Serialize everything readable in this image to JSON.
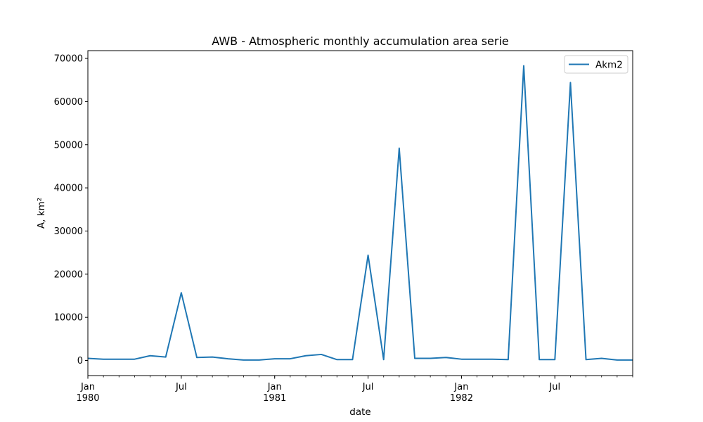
{
  "chart_data": {
    "type": "line",
    "title": "AWB - Atmospheric monthly accumulation area serie",
    "xlabel": "date",
    "ylabel": "A, km²",
    "ylim": [
      -3500,
      71800
    ],
    "xlim": [
      "1980-01",
      "1982-12"
    ],
    "y_ticks": [
      0,
      10000,
      20000,
      30000,
      40000,
      50000,
      60000,
      70000
    ],
    "x_ticks": [
      {
        "date": "1980-01",
        "line1": "Jan",
        "line2": "1980"
      },
      {
        "date": "1980-07",
        "line1": "Jul",
        "line2": ""
      },
      {
        "date": "1981-01",
        "line1": "Jan",
        "line2": "1981"
      },
      {
        "date": "1981-07",
        "line1": "Jul",
        "line2": ""
      },
      {
        "date": "1982-01",
        "line1": "Jan",
        "line2": "1982"
      },
      {
        "date": "1982-07",
        "line1": "Jul",
        "line2": ""
      }
    ],
    "grid": false,
    "legend_position": "top-right",
    "series": [
      {
        "name": "Akm2",
        "color": "#1f77b4",
        "x": [
          "1980-01",
          "1980-02",
          "1980-03",
          "1980-04",
          "1980-05",
          "1980-06",
          "1980-07",
          "1980-08",
          "1980-09",
          "1980-10",
          "1980-11",
          "1980-12",
          "1981-01",
          "1981-02",
          "1981-03",
          "1981-04",
          "1981-05",
          "1981-06",
          "1981-07",
          "1981-08",
          "1981-09",
          "1981-10",
          "1981-11",
          "1981-12",
          "1982-01",
          "1982-02",
          "1982-03",
          "1982-04",
          "1982-05",
          "1982-06",
          "1982-07",
          "1982-08",
          "1982-09",
          "1982-10",
          "1982-11",
          "1982-12"
        ],
        "values": [
          500,
          300,
          300,
          300,
          1100,
          800,
          15700,
          700,
          800,
          400,
          100,
          100,
          400,
          400,
          1100,
          1400,
          200,
          200,
          24400,
          200,
          49200,
          500,
          500,
          700,
          300,
          300,
          300,
          200,
          68300,
          200,
          200,
          64400,
          200,
          500,
          100,
          100
        ]
      }
    ]
  }
}
